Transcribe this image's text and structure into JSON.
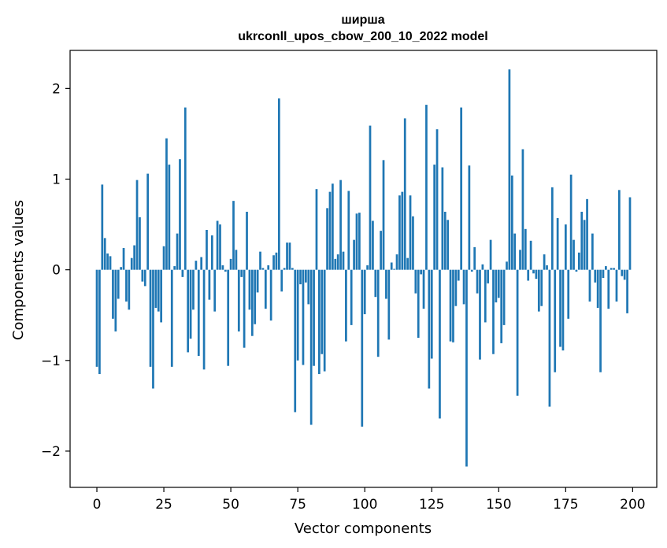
{
  "chart_data": {
    "type": "bar",
    "title_line1": "ширша",
    "title_line2": "ukrconll_upos_cbow_200_10_2022 model",
    "xlabel": "Vector components",
    "ylabel": "Components values",
    "xlim": [
      -10,
      209
    ],
    "ylim": [
      -2.4,
      2.42
    ],
    "x_ticks": [
      0,
      25,
      50,
      75,
      100,
      125,
      150,
      175,
      200
    ],
    "x_tick_labels": [
      "0",
      "25",
      "50",
      "75",
      "100",
      "125",
      "150",
      "175",
      "200"
    ],
    "y_ticks": [
      -2,
      -1,
      0,
      1,
      2
    ],
    "y_tick_labels": [
      "−2",
      "−1",
      "0",
      "1",
      "2"
    ],
    "bar_color": "#1f77b4",
    "grid": false,
    "values": [
      -1.07,
      -1.15,
      0.94,
      0.35,
      0.18,
      0.15,
      -0.54,
      -0.68,
      -0.32,
      0.03,
      0.24,
      -0.35,
      -0.44,
      0.13,
      0.27,
      0.99,
      0.58,
      -0.13,
      -0.18,
      1.06,
      -1.07,
      -1.31,
      -0.42,
      -0.46,
      -0.58,
      0.26,
      1.45,
      1.16,
      -1.07,
      0.04,
      0.4,
      1.22,
      -0.08,
      1.79,
      -0.91,
      -0.76,
      -0.44,
      0.1,
      -0.95,
      0.14,
      -1.1,
      0.44,
      -0.33,
      0.38,
      -0.46,
      0.54,
      0.5,
      0.05,
      -0.02,
      -1.06,
      0.12,
      0.76,
      0.22,
      -0.68,
      -0.08,
      -0.86,
      0.64,
      -0.44,
      -0.73,
      -0.6,
      -0.25,
      0.2,
      0.02,
      -0.43,
      0.05,
      -0.56,
      0.16,
      0.19,
      1.89,
      -0.24,
      0.02,
      0.3,
      0.3,
      0.02,
      -1.57,
      -1.0,
      -0.16,
      -1.05,
      -0.14,
      -0.38,
      -1.71,
      -1.06,
      0.89,
      -1.15,
      -0.93,
      -1.12,
      0.68,
      0.86,
      0.95,
      0.12,
      0.17,
      0.99,
      0.2,
      -0.79,
      0.87,
      -0.61,
      0.33,
      0.62,
      0.63,
      -1.73,
      -0.49,
      0.05,
      1.59,
      0.54,
      -0.3,
      -0.96,
      0.43,
      1.21,
      -0.32,
      -0.77,
      0.08,
      0.01,
      0.17,
      0.82,
      0.86,
      1.67,
      0.13,
      0.82,
      0.59,
      -0.26,
      -0.75,
      -0.05,
      -0.43,
      1.82,
      -1.31,
      -0.98,
      1.16,
      1.55,
      -1.64,
      1.13,
      0.64,
      0.55,
      -0.79,
      -0.8,
      -0.4,
      -0.12,
      1.79,
      -0.38,
      -2.17,
      1.15,
      -0.02,
      0.25,
      -0.26,
      -0.99,
      0.06,
      -0.58,
      -0.15,
      0.33,
      -0.93,
      -0.36,
      -0.31,
      -0.81,
      -0.61,
      0.09,
      2.21,
      1.04,
      0.4,
      -1.39,
      0.22,
      1.33,
      0.45,
      -0.12,
      0.32,
      -0.04,
      -0.1,
      -0.46,
      -0.4,
      0.17,
      0.05,
      -1.51,
      0.91,
      -1.13,
      0.57,
      -0.85,
      -0.89,
      0.5,
      -0.54,
      1.05,
      0.33,
      -0.02,
      0.19,
      0.64,
      0.55,
      0.78,
      -0.35,
      0.4,
      -0.14,
      -0.42,
      -1.13,
      -0.09,
      0.04,
      -0.43,
      0.02,
      0.02,
      -0.35,
      0.88,
      -0.07,
      -0.11,
      -0.48,
      0.8
    ]
  }
}
